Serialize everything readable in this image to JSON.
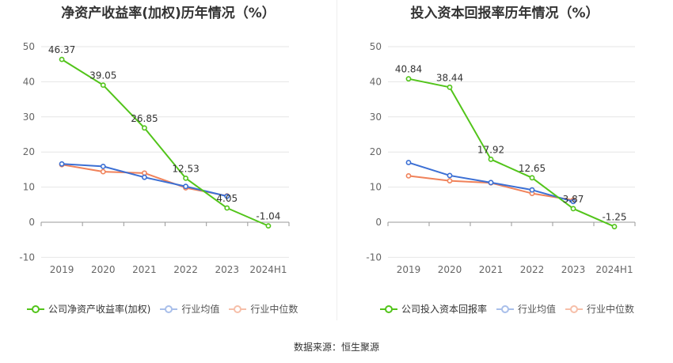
{
  "source_text": "数据来源：恒生聚源",
  "colors": {
    "company": "#52c41a",
    "avg": "#3b6fd4",
    "median": "#f0825a",
    "grid": "#e6e6e6",
    "axis": "#666666"
  },
  "chart_data": [
    {
      "type": "line",
      "title": "净资产收益率(加权)历年情况（%）",
      "categories": [
        "2019",
        "2020",
        "2021",
        "2022",
        "2023",
        "2024H1"
      ],
      "ylim": [
        -10,
        50
      ],
      "yticks": [
        -10,
        0,
        10,
        20,
        30,
        40,
        50
      ],
      "grid": true,
      "legend_position": "bottom-left",
      "series": [
        {
          "name": "公司净资产收益率(加权)",
          "key": "company",
          "values": [
            46.37,
            39.05,
            26.85,
            12.53,
            4.05,
            -1.04
          ],
          "labels": [
            "46.37",
            "39.05",
            "26.85",
            "12.53",
            "4.05",
            "-1.04"
          ]
        },
        {
          "name": "行业均值",
          "key": "avg",
          "values": [
            16.6,
            15.9,
            12.8,
            10.2,
            7.4,
            null
          ]
        },
        {
          "name": "行业中位数",
          "key": "median",
          "values": [
            16.4,
            14.4,
            14.0,
            9.8,
            7.5,
            null
          ]
        }
      ]
    },
    {
      "type": "line",
      "title": "投入资本回报率历年情况（%）",
      "categories": [
        "2019",
        "2020",
        "2021",
        "2022",
        "2023",
        "2024H1"
      ],
      "ylim": [
        -10,
        50
      ],
      "yticks": [
        -10,
        0,
        10,
        20,
        30,
        40,
        50
      ],
      "grid": true,
      "legend_position": "bottom-left",
      "series": [
        {
          "name": "公司投入资本回报率",
          "key": "company",
          "values": [
            40.84,
            38.44,
            17.92,
            12.65,
            3.87,
            -1.25
          ],
          "labels": [
            "40.84",
            "38.44",
            "17.92",
            "12.65",
            "3.87",
            "-1.25"
          ]
        },
        {
          "name": "行业均值",
          "key": "avg",
          "values": [
            17.0,
            13.3,
            11.3,
            9.2,
            5.9,
            null
          ]
        },
        {
          "name": "行业中位数",
          "key": "median",
          "values": [
            13.2,
            11.8,
            11.2,
            8.2,
            6.3,
            null
          ]
        }
      ]
    }
  ]
}
